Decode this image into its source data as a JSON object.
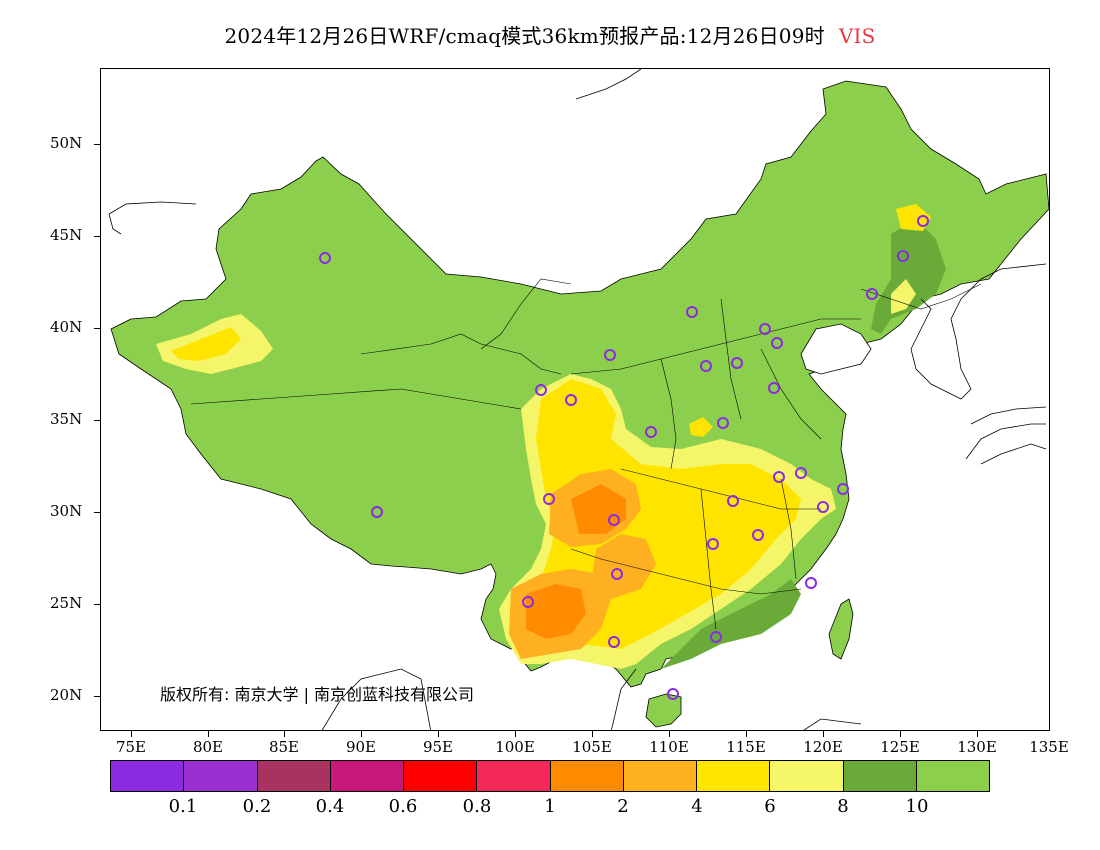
{
  "title": {
    "main": "2024年12月26日WRF/cmaq模式36km预报产品:12月26日09时",
    "variable": "VIS"
  },
  "copyright": "版权所有: 南京大学 | 南京创蓝科技有限公司",
  "lat_labels": [
    "50N",
    "45N",
    "40N",
    "35N",
    "30N",
    "25N",
    "20N"
  ],
  "lon_labels": [
    "75E",
    "80E",
    "85E",
    "90E",
    "95E",
    "100E",
    "105E",
    "110E",
    "115E",
    "120E",
    "125E",
    "130E",
    "135E"
  ],
  "legend": {
    "colors": [
      "#8b2be2",
      "#9b30d0",
      "#a83260",
      "#c8187a",
      "#ff0000",
      "#f5285a",
      "#ff8c00",
      "#ffb020",
      "#ffe400",
      "#f5f56a",
      "#6aaa38",
      "#8ccf4c"
    ],
    "labels": [
      "0.1",
      "0.2",
      "0.4",
      "0.6",
      "0.8",
      "1",
      "2",
      "4",
      "6",
      "8",
      "10"
    ]
  },
  "colors": {
    "base_green": "#8ccf4c",
    "dark_green": "#6aaa38",
    "light_yellow": "#f5f56a",
    "yellow": "#ffe400",
    "light_orange": "#ffb020",
    "orange": "#ff8c00",
    "station_marker": "#8b2be2",
    "title_variable": "#e8383d"
  }
}
